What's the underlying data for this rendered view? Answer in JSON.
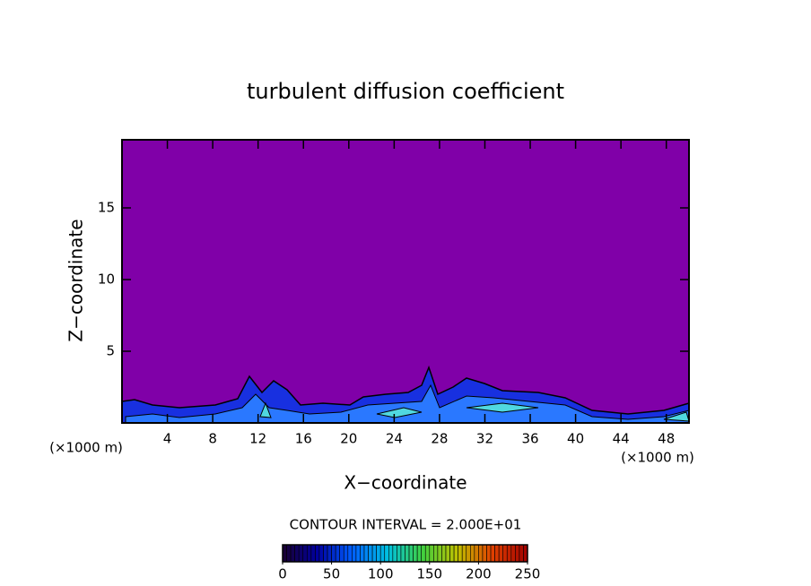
{
  "chart_data": {
    "type": "contour",
    "title": "turbulent diffusion coefficient",
    "xlabel": "X−coordinate",
    "ylabel": "Z−coordinate",
    "x_unit_left": "(×1000 m)",
    "x_unit_right": "(×1000 m)",
    "xlim": [
      0,
      50
    ],
    "xticks": [
      4,
      8,
      12,
      16,
      20,
      24,
      28,
      32,
      36,
      40,
      44,
      48
    ],
    "ylim": [
      0,
      19.75
    ],
    "yticks": [
      5,
      10,
      15
    ],
    "contour_interval_text": "CONTOUR INTERVAL = 2.000E+01",
    "colorbar": {
      "lim": [
        0,
        250
      ],
      "ticks": [
        0,
        50,
        100,
        150,
        200,
        250
      ],
      "colormap": [
        "#1a0030",
        "#0000a0",
        "#0060ff",
        "#00c0e0",
        "#40d040",
        "#c0c000",
        "#e04000",
        "#a00000"
      ]
    }
  }
}
